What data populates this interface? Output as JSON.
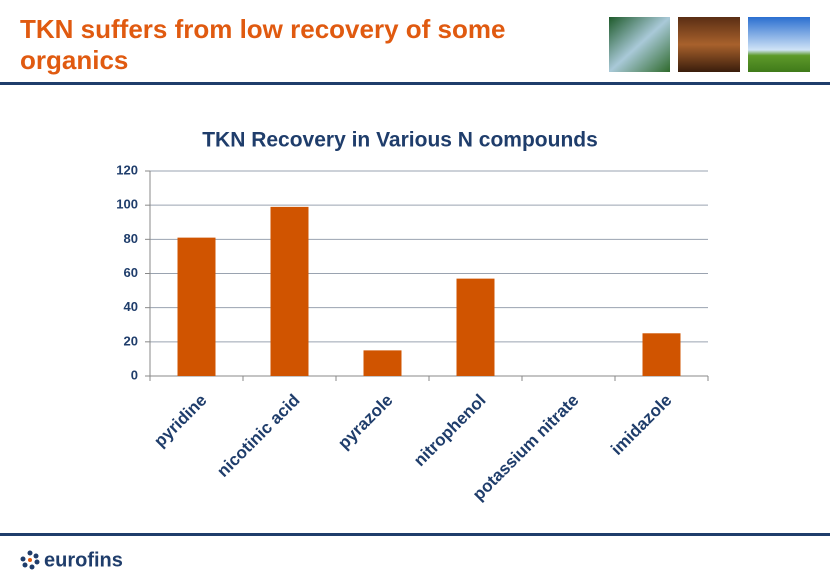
{
  "slide": {
    "title": "TKN suffers from low recovery of some organics"
  },
  "chart_data": {
    "type": "bar",
    "title": "TKN Recovery in Various N compounds",
    "categories": [
      "pyridine",
      "nicotinic acid",
      "pyrazole",
      "nitrophenol",
      "potassium nitrate",
      "imidazole"
    ],
    "values": [
      81,
      99,
      15,
      57,
      0,
      25
    ],
    "color": "#d05400",
    "ylim": [
      0,
      120
    ],
    "yticks": [
      0,
      20,
      40,
      60,
      80,
      100,
      120
    ],
    "grid": true
  },
  "footer": {
    "logo": "eurofins"
  }
}
